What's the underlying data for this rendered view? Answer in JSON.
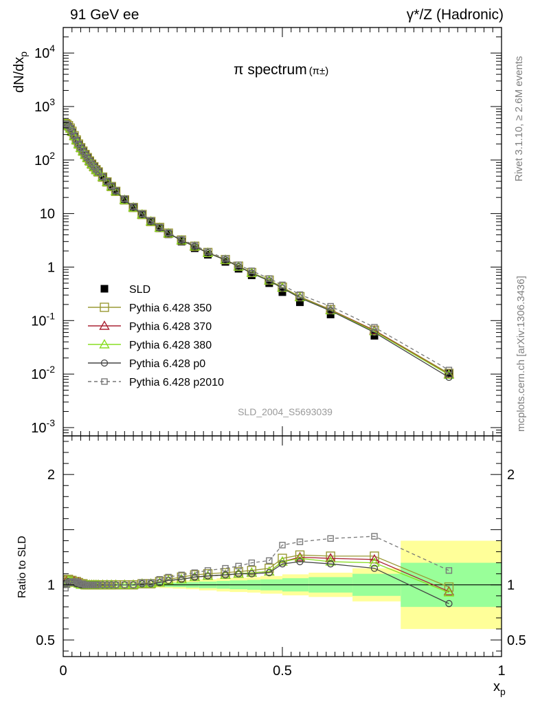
{
  "header": {
    "left": "91 GeV ee",
    "right": "γ*/Z (Hadronic)",
    "plot_title": "π spectrum",
    "plot_title_sub": "(π±)",
    "side_rivet": "Rivet 3.1.10, ≥ 2.6M events",
    "side_mcplots": "mcplots.cern.ch [arXiv:1306.3436]",
    "analysis_id": "SLD_2004_S5693039"
  },
  "chart_data": {
    "type": "scatter",
    "main": {
      "ylabel": "dN/dx_p",
      "yscale": "log",
      "ylim": [
        0.0007,
        30000
      ],
      "xlim": [
        0,
        1
      ],
      "ytick_labels": [
        "10^-3",
        "10^-2",
        "10^-1",
        "1",
        "10",
        "10^2",
        "10^3",
        "10^4"
      ],
      "x": [
        0.005,
        0.008,
        0.012,
        0.016,
        0.02,
        0.025,
        0.03,
        0.035,
        0.04,
        0.045,
        0.05,
        0.055,
        0.06,
        0.065,
        0.07,
        0.075,
        0.08,
        0.09,
        0.1,
        0.11,
        0.12,
        0.14,
        0.16,
        0.18,
        0.2,
        0.22,
        0.24,
        0.27,
        0.3,
        0.33,
        0.37,
        0.4,
        0.43,
        0.47,
        0.5,
        0.54,
        0.61,
        0.71,
        0.88
      ],
      "series": [
        {
          "name": "SLD",
          "values": [
            470,
            450,
            420,
            380,
            330,
            275,
            230,
            195,
            168,
            145,
            126,
            110,
            96,
            84,
            75,
            66,
            60,
            48,
            39,
            32,
            26,
            18,
            13,
            9.5,
            7,
            5.3,
            4.1,
            3.0,
            2.25,
            1.7,
            1.25,
            0.93,
            0.7,
            0.5,
            0.34,
            0.22,
            0.13,
            0.052,
            0.0105
          ]
        },
        {
          "name": "Pythia 6.428 350",
          "values": [
            480,
            465,
            440,
            395,
            345,
            285,
            237,
            199,
            170,
            147,
            127,
            111,
            96,
            84,
            75,
            66,
            60,
            48,
            39,
            32,
            26,
            18,
            13,
            9.6,
            7.1,
            5.5,
            4.3,
            3.2,
            2.45,
            1.87,
            1.38,
            1.04,
            0.79,
            0.57,
            0.42,
            0.28,
            0.16,
            0.066,
            0.0103
          ]
        },
        {
          "name": "Pythia 6.428 370",
          "values": [
            478,
            462,
            437,
            392,
            342,
            283,
            236,
            198,
            169,
            146,
            126,
            110,
            96,
            84,
            75,
            66,
            60,
            48,
            39,
            32,
            26,
            18,
            13,
            9.6,
            7.1,
            5.4,
            4.25,
            3.15,
            2.42,
            1.84,
            1.36,
            1.02,
            0.78,
            0.56,
            0.41,
            0.275,
            0.158,
            0.065,
            0.0099
          ]
        },
        {
          "name": "Pythia 6.428 380",
          "values": [
            476,
            460,
            435,
            390,
            340,
            282,
            235,
            197,
            168,
            145,
            126,
            110,
            96,
            84,
            75,
            66,
            60,
            48,
            39,
            32,
            26,
            18,
            13,
            9.6,
            7.1,
            5.4,
            4.25,
            3.15,
            2.42,
            1.84,
            1.36,
            1.02,
            0.78,
            0.56,
            0.41,
            0.272,
            0.155,
            0.063,
            0.0097
          ]
        },
        {
          "name": "Pythia 6.428 p0",
          "values": [
            475,
            460,
            434,
            388,
            338,
            281,
            234,
            196,
            168,
            145,
            126,
            110,
            96,
            84,
            75,
            66,
            60,
            48,
            39,
            32,
            26,
            18,
            13,
            9.6,
            7.1,
            5.4,
            4.25,
            3.15,
            2.42,
            1.84,
            1.36,
            1.02,
            0.77,
            0.55,
            0.405,
            0.265,
            0.152,
            0.06,
            0.0087
          ]
        },
        {
          "name": "Pythia 6.428 p2010",
          "values": [
            480,
            465,
            440,
            395,
            345,
            287,
            238,
            200,
            171,
            148,
            128,
            112,
            97,
            85,
            76,
            67,
            61,
            49,
            40,
            33,
            27,
            19,
            13.6,
            10.0,
            7.4,
            5.6,
            4.4,
            3.3,
            2.55,
            1.95,
            1.45,
            1.1,
            0.85,
            0.61,
            0.465,
            0.305,
            0.185,
            0.075,
            0.0119
          ]
        }
      ]
    },
    "ratio": {
      "ylabel": "Ratio to SLD",
      "ylim": [
        0.35,
        2.35
      ],
      "xlim": [
        0,
        1
      ],
      "xlabel": "x_p",
      "ytick_labels": [
        "0.5",
        "1",
        "2"
      ],
      "xtick_labels": [
        "0",
        "0.5",
        "1"
      ],
      "x": [
        0.005,
        0.008,
        0.012,
        0.016,
        0.02,
        0.025,
        0.03,
        0.035,
        0.04,
        0.045,
        0.05,
        0.055,
        0.06,
        0.065,
        0.07,
        0.075,
        0.08,
        0.09,
        0.1,
        0.11,
        0.12,
        0.14,
        0.16,
        0.18,
        0.2,
        0.22,
        0.24,
        0.27,
        0.3,
        0.33,
        0.37,
        0.4,
        0.43,
        0.47,
        0.5,
        0.54,
        0.61,
        0.71,
        0.88
      ],
      "band_edges": [
        0,
        0.01,
        0.02,
        0.03,
        0.04,
        0.05,
        0.06,
        0.07,
        0.08,
        0.1,
        0.12,
        0.14,
        0.16,
        0.18,
        0.2,
        0.22,
        0.25,
        0.28,
        0.31,
        0.35,
        0.38,
        0.42,
        0.45,
        0.5,
        0.56,
        0.66,
        0.77,
        1.0
      ],
      "band_stat": [
        0.02,
        0.015,
        0.012,
        0.012,
        0.012,
        0.012,
        0.012,
        0.012,
        0.012,
        0.012,
        0.012,
        0.012,
        0.012,
        0.015,
        0.015,
        0.018,
        0.02,
        0.025,
        0.03,
        0.035,
        0.04,
        0.045,
        0.05,
        0.06,
        0.07,
        0.1,
        0.2
      ],
      "band_total": [
        0.03,
        0.025,
        0.02,
        0.02,
        0.02,
        0.02,
        0.02,
        0.02,
        0.02,
        0.02,
        0.02,
        0.02,
        0.02,
        0.025,
        0.025,
        0.03,
        0.035,
        0.04,
        0.05,
        0.06,
        0.065,
        0.07,
        0.08,
        0.095,
        0.11,
        0.15,
        0.4
      ],
      "series": [
        {
          "name": "Pythia 6.428 350",
          "values": [
            1.02,
            1.04,
            1.05,
            1.04,
            1.04,
            1.03,
            1.03,
            1.02,
            1.01,
            1.01,
            1.0,
            1.0,
            1.0,
            1.0,
            1.0,
            1.0,
            1.0,
            1.0,
            1.0,
            1.0,
            1.0,
            1.0,
            1.0,
            1.01,
            1.01,
            1.03,
            1.05,
            1.07,
            1.09,
            1.1,
            1.11,
            1.12,
            1.13,
            1.15,
            1.24,
            1.27,
            1.26,
            1.26,
            0.98
          ]
        },
        {
          "name": "Pythia 6.428 370",
          "values": [
            1.02,
            1.03,
            1.04,
            1.03,
            1.03,
            1.03,
            1.02,
            1.02,
            1.01,
            1.0,
            1.0,
            1.0,
            1.0,
            1.0,
            1.0,
            1.0,
            1.0,
            1.0,
            1.0,
            1.0,
            1.0,
            1.0,
            1.0,
            1.01,
            1.01,
            1.02,
            1.04,
            1.05,
            1.07,
            1.08,
            1.09,
            1.1,
            1.11,
            1.12,
            1.21,
            1.25,
            1.24,
            1.23,
            0.94
          ]
        },
        {
          "name": "Pythia 6.428 380",
          "values": [
            1.01,
            1.02,
            1.04,
            1.03,
            1.03,
            1.02,
            1.02,
            1.01,
            1.0,
            1.0,
            1.0,
            1.0,
            1.0,
            1.0,
            1.0,
            1.0,
            1.0,
            1.0,
            1.0,
            1.0,
            1.0,
            1.0,
            1.0,
            1.01,
            1.01,
            1.02,
            1.04,
            1.05,
            1.07,
            1.08,
            1.09,
            1.1,
            1.11,
            1.12,
            1.21,
            1.24,
            1.21,
            1.2,
            0.93
          ]
        },
        {
          "name": "Pythia 6.428 p0",
          "values": [
            1.01,
            1.02,
            1.03,
            1.02,
            1.02,
            1.02,
            1.01,
            1.01,
            1.0,
            1.0,
            1.0,
            1.0,
            1.0,
            1.0,
            1.0,
            1.0,
            1.0,
            1.0,
            1.0,
            1.0,
            1.0,
            1.0,
            1.0,
            1.01,
            1.01,
            1.02,
            1.04,
            1.05,
            1.07,
            1.08,
            1.09,
            1.1,
            1.1,
            1.11,
            1.19,
            1.21,
            1.19,
            1.15,
            0.83
          ]
        },
        {
          "name": "Pythia 6.428 p2010",
          "values": [
            0.97,
            1.0,
            1.02,
            1.02,
            1.03,
            1.03,
            1.03,
            1.02,
            1.01,
            1.01,
            1.0,
            1.0,
            1.0,
            1.0,
            1.0,
            1.0,
            1.0,
            1.0,
            1.0,
            1.0,
            1.0,
            1.0,
            1.0,
            1.02,
            1.02,
            1.05,
            1.07,
            1.09,
            1.11,
            1.13,
            1.15,
            1.17,
            1.2,
            1.22,
            1.36,
            1.39,
            1.42,
            1.44,
            1.13
          ]
        }
      ]
    }
  },
  "legend": {
    "placement": "lower-left",
    "items": [
      {
        "label": "SLD",
        "color": "#000000",
        "marker": "filled-square",
        "line": "none"
      },
      {
        "label": "Pythia 6.428 350",
        "color": "#999933",
        "marker": "open-square",
        "line": "solid"
      },
      {
        "label": "Pythia 6.428 370",
        "color": "#aa2233",
        "marker": "open-triangle",
        "line": "solid"
      },
      {
        "label": "Pythia 6.428 380",
        "color": "#88dd22",
        "marker": "open-triangle",
        "line": "solid"
      },
      {
        "label": "Pythia 6.428 p0",
        "color": "#444444",
        "marker": "open-circle",
        "line": "solid"
      },
      {
        "label": "Pythia 6.428 p2010",
        "color": "#777777",
        "marker": "open-square-small",
        "line": "dashed"
      }
    ]
  },
  "colors": {
    "band_stat": "#99ff99",
    "band_total": "#ffff99"
  }
}
